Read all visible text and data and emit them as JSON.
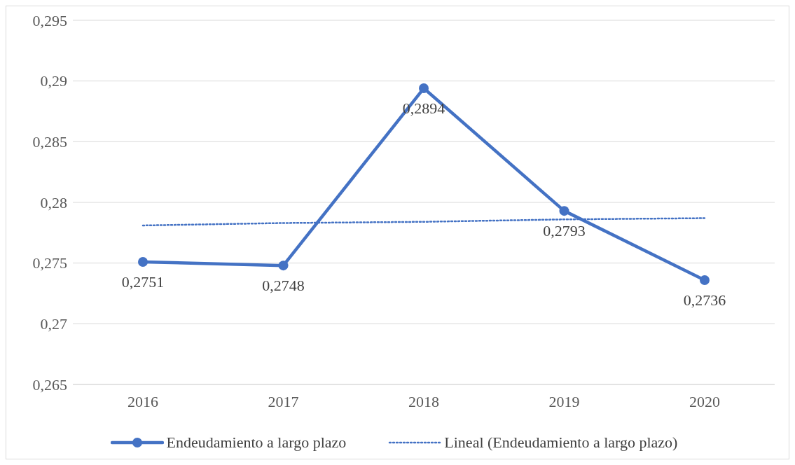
{
  "chart_data": {
    "type": "line",
    "categories": [
      "2016",
      "2017",
      "2018",
      "2019",
      "2020"
    ],
    "series": [
      {
        "name": "Endeudamiento a largo plazo",
        "color": "#4472c4",
        "values": [
          0.2751,
          0.2748,
          0.2894,
          0.2793,
          0.2736
        ],
        "marker": "circle",
        "line_style": "solid",
        "value_labels": [
          "0,2751",
          "0,2748",
          "0,2894",
          "0,2793",
          "0,2736"
        ]
      },
      {
        "name": "Lineal (Endeudamiento a largo plazo)",
        "color": "#4472c4",
        "values": [
          0.2781,
          0.2783,
          0.2784,
          0.2786,
          0.2787
        ],
        "marker": "none",
        "line_style": "dotted"
      }
    ],
    "ylim": [
      0.265,
      0.295
    ],
    "yticks": [
      {
        "value": 0.265,
        "label": "0,265"
      },
      {
        "value": 0.27,
        "label": "0,27"
      },
      {
        "value": 0.275,
        "label": "0,275"
      },
      {
        "value": 0.28,
        "label": "0,28"
      },
      {
        "value": 0.285,
        "label": "0,285"
      },
      {
        "value": 0.29,
        "label": "0,29"
      },
      {
        "value": 0.295,
        "label": "0,295"
      }
    ],
    "grid": "y",
    "legend": "bottom"
  }
}
